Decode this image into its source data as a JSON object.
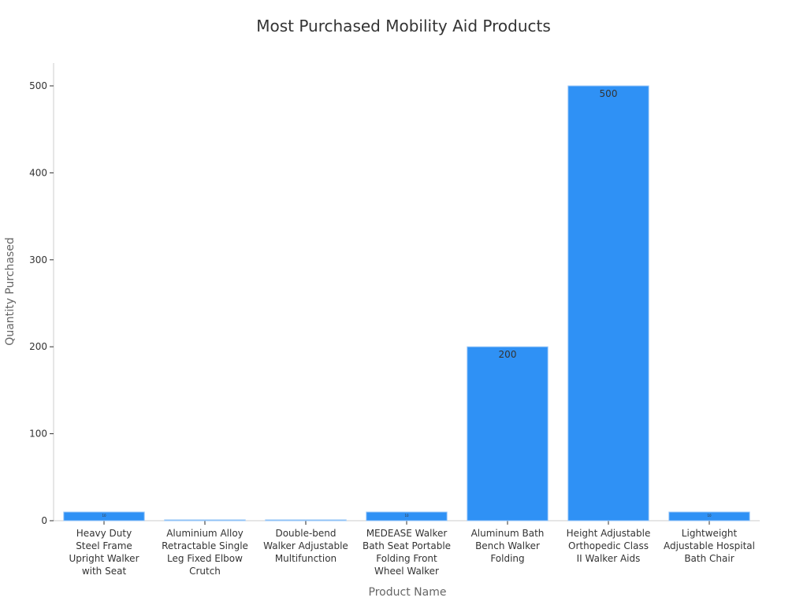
{
  "chart_data": {
    "type": "bar",
    "title": "Most Purchased Mobility Aid Products",
    "xlabel": "Product Name",
    "ylabel": "Quantity Purchased",
    "categories": [
      [
        "Heavy Duty",
        "Steel Frame",
        "Upright Walker",
        "with Seat"
      ],
      [
        "Aluminium Alloy",
        "Retractable Single",
        "Leg Fixed Elbow",
        "Crutch"
      ],
      [
        "Double-bend",
        "Walker Adjustable",
        "Multifunction"
      ],
      [
        "MEDEASE Walker",
        "Bath Seat Portable",
        "Folding Front",
        "Wheel Walker"
      ],
      [
        "Aluminum Bath",
        "Bench Walker",
        "Folding"
      ],
      [
        "Height Adjustable",
        "Orthopedic Class",
        "II Walker Aids"
      ],
      [
        "Lightweight",
        "Adjustable Hospital",
        "Bath Chair"
      ]
    ],
    "values": [
      10,
      1,
      1,
      10,
      200,
      500,
      10
    ],
    "data_labels": [
      "10",
      "1",
      "1",
      "10",
      "200",
      "500",
      "10"
    ],
    "yticks": [
      0,
      100,
      200,
      300,
      400,
      500
    ],
    "ylim": [
      0,
      527
    ],
    "grid": false,
    "colors": {
      "bar": "#2f91f5",
      "bar_edge": "#9cc8f7",
      "axis": "#cccccc"
    }
  }
}
